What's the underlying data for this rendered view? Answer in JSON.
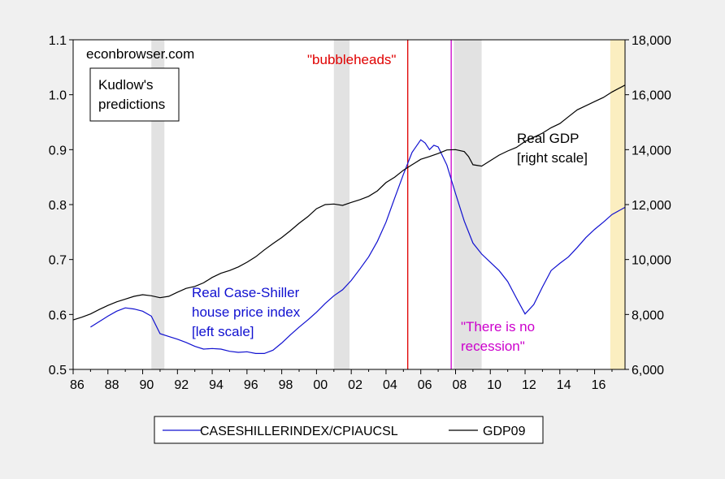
{
  "chart_data": {
    "type": "line",
    "source_label": "econbrowser.com",
    "box_label": [
      "Kudlow's",
      "predictions"
    ],
    "x_ticks": [
      "86",
      "88",
      "90",
      "92",
      "94",
      "96",
      "98",
      "00",
      "02",
      "04",
      "06",
      "08",
      "10",
      "12",
      "14",
      "16"
    ],
    "x_range": [
      1986,
      2017.75
    ],
    "y_left": {
      "ticks": [
        "0.5",
        "0.6",
        "0.7",
        "0.8",
        "0.9",
        "1.0",
        "1.1"
      ],
      "range": [
        0.5,
        1.1
      ]
    },
    "y_right": {
      "ticks": [
        "6,000",
        "8,000",
        "10,000",
        "12,000",
        "14,000",
        "16,000",
        "18,000"
      ],
      "range": [
        6000,
        18000
      ]
    },
    "recessions": [
      [
        1990.5,
        1991.25
      ],
      [
        2001.0,
        2001.9
      ],
      [
        2007.9,
        2009.5
      ]
    ],
    "forecast_shading": [
      2016.9,
      2017.75
    ],
    "vlines": [
      {
        "x": 2005.25,
        "color": "#e00000",
        "label": "\"bubbleheads\""
      },
      {
        "x": 2007.75,
        "color": "#cc00cc",
        "label": [
          "\"There is no",
          "recession\""
        ]
      }
    ],
    "series": [
      {
        "name": "CASESHILLERINDEX/CPIAUCSL",
        "axis": "left",
        "color": "#1010d0",
        "label": [
          "Real Case-Shiller",
          "house price index",
          "[left scale]"
        ],
        "points": [
          [
            1987.0,
            0.577
          ],
          [
            1987.5,
            0.587
          ],
          [
            1988.0,
            0.597
          ],
          [
            1988.5,
            0.606
          ],
          [
            1989.0,
            0.612
          ],
          [
            1989.5,
            0.61
          ],
          [
            1990.0,
            0.606
          ],
          [
            1990.5,
            0.597
          ],
          [
            1991.0,
            0.565
          ],
          [
            1991.5,
            0.56
          ],
          [
            1992.0,
            0.555
          ],
          [
            1992.5,
            0.549
          ],
          [
            1993.0,
            0.542
          ],
          [
            1993.5,
            0.537
          ],
          [
            1994.0,
            0.538
          ],
          [
            1994.5,
            0.537
          ],
          [
            1995.0,
            0.533
          ],
          [
            1995.5,
            0.531
          ],
          [
            1996.0,
            0.532
          ],
          [
            1996.5,
            0.529
          ],
          [
            1997.0,
            0.529
          ],
          [
            1997.5,
            0.535
          ],
          [
            1998.0,
            0.548
          ],
          [
            1998.5,
            0.563
          ],
          [
            1999.0,
            0.577
          ],
          [
            1999.5,
            0.59
          ],
          [
            2000.0,
            0.604
          ],
          [
            2000.5,
            0.62
          ],
          [
            2001.0,
            0.634
          ],
          [
            2001.5,
            0.645
          ],
          [
            2002.0,
            0.662
          ],
          [
            2002.5,
            0.683
          ],
          [
            2003.0,
            0.705
          ],
          [
            2003.5,
            0.733
          ],
          [
            2004.0,
            0.768
          ],
          [
            2004.5,
            0.812
          ],
          [
            2005.0,
            0.855
          ],
          [
            2005.5,
            0.895
          ],
          [
            2006.0,
            0.918
          ],
          [
            2006.25,
            0.912
          ],
          [
            2006.5,
            0.9
          ],
          [
            2006.75,
            0.908
          ],
          [
            2007.0,
            0.905
          ],
          [
            2007.5,
            0.872
          ],
          [
            2008.0,
            0.82
          ],
          [
            2008.5,
            0.77
          ],
          [
            2009.0,
            0.73
          ],
          [
            2009.5,
            0.71
          ],
          [
            2010.0,
            0.695
          ],
          [
            2010.5,
            0.68
          ],
          [
            2011.0,
            0.66
          ],
          [
            2011.5,
            0.63
          ],
          [
            2012.0,
            0.601
          ],
          [
            2012.5,
            0.618
          ],
          [
            2013.0,
            0.65
          ],
          [
            2013.5,
            0.68
          ],
          [
            2014.0,
            0.693
          ],
          [
            2014.5,
            0.705
          ],
          [
            2015.0,
            0.722
          ],
          [
            2015.5,
            0.74
          ],
          [
            2016.0,
            0.755
          ],
          [
            2016.5,
            0.768
          ],
          [
            2017.0,
            0.782
          ],
          [
            2017.75,
            0.795
          ]
        ]
      },
      {
        "name": "GDP09",
        "axis": "right",
        "color": "#000000",
        "label": [
          "Real GDP",
          "[right scale]"
        ],
        "points": [
          [
            1986.0,
            7800
          ],
          [
            1986.5,
            7900
          ],
          [
            1987.0,
            8020
          ],
          [
            1987.5,
            8180
          ],
          [
            1988.0,
            8330
          ],
          [
            1988.5,
            8460
          ],
          [
            1989.0,
            8560
          ],
          [
            1989.5,
            8660
          ],
          [
            1990.0,
            8720
          ],
          [
            1990.5,
            8680
          ],
          [
            1991.0,
            8610
          ],
          [
            1991.5,
            8660
          ],
          [
            1992.0,
            8810
          ],
          [
            1992.5,
            8950
          ],
          [
            1993.0,
            9020
          ],
          [
            1993.5,
            9150
          ],
          [
            1994.0,
            9350
          ],
          [
            1994.5,
            9500
          ],
          [
            1995.0,
            9600
          ],
          [
            1995.5,
            9730
          ],
          [
            1996.0,
            9900
          ],
          [
            1996.5,
            10100
          ],
          [
            1997.0,
            10350
          ],
          [
            1997.5,
            10580
          ],
          [
            1998.0,
            10800
          ],
          [
            1998.5,
            11050
          ],
          [
            1999.0,
            11320
          ],
          [
            1999.5,
            11560
          ],
          [
            2000.0,
            11850
          ],
          [
            2000.5,
            12000
          ],
          [
            2001.0,
            12020
          ],
          [
            2001.5,
            11970
          ],
          [
            2002.0,
            12080
          ],
          [
            2002.5,
            12180
          ],
          [
            2003.0,
            12300
          ],
          [
            2003.5,
            12500
          ],
          [
            2004.0,
            12800
          ],
          [
            2004.5,
            13000
          ],
          [
            2005.0,
            13250
          ],
          [
            2005.5,
            13450
          ],
          [
            2006.0,
            13650
          ],
          [
            2006.5,
            13750
          ],
          [
            2007.0,
            13860
          ],
          [
            2007.5,
            13990
          ],
          [
            2008.0,
            14000
          ],
          [
            2008.5,
            13930
          ],
          [
            2008.75,
            13750
          ],
          [
            2009.0,
            13450
          ],
          [
            2009.5,
            13400
          ],
          [
            2010.0,
            13600
          ],
          [
            2010.5,
            13800
          ],
          [
            2011.0,
            13950
          ],
          [
            2011.5,
            14080
          ],
          [
            2012.0,
            14300
          ],
          [
            2012.5,
            14450
          ],
          [
            2013.0,
            14600
          ],
          [
            2013.5,
            14800
          ],
          [
            2014.0,
            14950
          ],
          [
            2014.5,
            15200
          ],
          [
            2015.0,
            15450
          ],
          [
            2015.5,
            15600
          ],
          [
            2016.0,
            15750
          ],
          [
            2016.5,
            15900
          ],
          [
            2017.0,
            16100
          ],
          [
            2017.75,
            16350
          ]
        ]
      }
    ],
    "grid": false,
    "legend_position": "bottom-center"
  }
}
